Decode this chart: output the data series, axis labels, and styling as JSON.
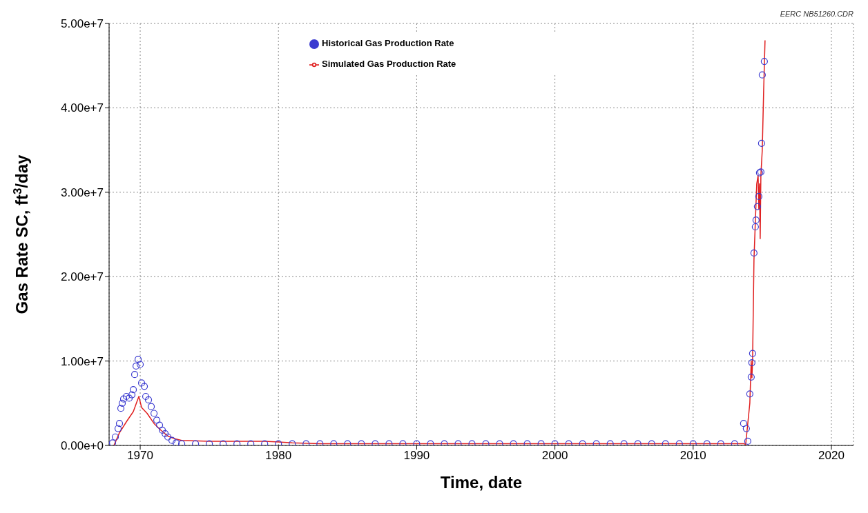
{
  "chart_data": {
    "type": "line",
    "xlabel": "Time, date",
    "ylabel": "Gas Rate SC, ft$^{3}$/day",
    "annotations": [
      "EERC NB51260.CDR"
    ],
    "xlim": [
      1967.75,
      2021.6
    ],
    "xticks": [
      1970,
      1980,
      1990,
      2000,
      2010,
      2020
    ],
    "ylim": [
      0,
      50000000
    ],
    "yticks": [
      {
        "value": 0,
        "label": "0.00e+0"
      },
      {
        "value": 10000000,
        "label": "1.00e+7"
      },
      {
        "value": 20000000,
        "label": "2.00e+7"
      },
      {
        "value": 30000000,
        "label": "3.00e+7"
      },
      {
        "value": 40000000,
        "label": "4.00e+7"
      },
      {
        "value": 50000000,
        "label": "5.00e+7"
      }
    ],
    "grid": true,
    "legend": "top",
    "series": [
      {
        "name": "Historical Gas Production Rate",
        "type": "scatter",
        "marker": "circle",
        "color": "#3b3bd0",
        "x": [
          1968.0,
          1968.2,
          1968.4,
          1968.5,
          1968.6,
          1968.7,
          1968.8,
          1969.0,
          1969.2,
          1969.4,
          1969.5,
          1969.6,
          1969.7,
          1969.85,
          1970.0,
          1970.1,
          1970.3,
          1970.4,
          1970.6,
          1970.8,
          1971.0,
          1971.2,
          1971.4,
          1971.6,
          1971.8,
          1972.0,
          1972.3,
          1972.6,
          1973,
          1974,
          1975,
          1976,
          1977,
          1978,
          1979,
          1980,
          1981,
          1982,
          1983,
          1984,
          1985,
          1986,
          1987,
          1988,
          1989,
          1990,
          1991,
          1992,
          1993,
          1994,
          1995,
          1996,
          1997,
          1998,
          1999,
          2000,
          2001,
          2002,
          2003,
          2004,
          2005,
          2006,
          2007,
          2008,
          2009,
          2010,
          2011,
          2012,
          2013,
          2013.65,
          2013.85,
          2013.95,
          2014.1,
          2014.2,
          2014.25,
          2014.3,
          2014.4,
          2014.5,
          2014.55,
          2014.65,
          2014.75,
          2014.8,
          2014.9,
          2014.95,
          2015.0,
          2015.15
        ],
        "values": [
          300000,
          1000000,
          2000000,
          2600000,
          4400000,
          5000000,
          5500000,
          5800000,
          5600000,
          6000000,
          6600000,
          8400000,
          9400000,
          10200000,
          9600000,
          7400000,
          7000000,
          5800000,
          5400000,
          4600000,
          3800000,
          3000000,
          2400000,
          1800000,
          1400000,
          1000000,
          600000,
          300000,
          200000,
          200000,
          200000,
          200000,
          200000,
          200000,
          200000,
          200000,
          200000,
          200000,
          200000,
          200000,
          200000,
          200000,
          200000,
          200000,
          200000,
          200000,
          200000,
          200000,
          200000,
          200000,
          200000,
          200000,
          200000,
          200000,
          200000,
          200000,
          200000,
          200000,
          200000,
          200000,
          200000,
          200000,
          200000,
          200000,
          200000,
          200000,
          200000,
          200000,
          200000,
          2600000,
          2000000,
          500000,
          6100000,
          8100000,
          9800000,
          10900000,
          22800000,
          25900000,
          26700000,
          28300000,
          29500000,
          32300000,
          32400000,
          35800000,
          43900000,
          45500000
        ]
      },
      {
        "name": "Simulated Gas Production Rate",
        "type": "line",
        "marker": "none",
        "line_style": "solid",
        "color": "#e02020",
        "x": [
          1968.1,
          1968.5,
          1969.0,
          1969.5,
          1969.9,
          1970.1,
          1970.5,
          1971.0,
          1971.5,
          1972.0,
          1972.5,
          1973,
          1975,
          1977,
          1979,
          1980,
          1981,
          1983,
          2013.7,
          2013.8,
          2014.1,
          2014.2,
          2014.25,
          2014.3,
          2014.4,
          2014.6,
          2014.7,
          2014.75,
          2014.8,
          2014.85,
          2014.9,
          2015.0,
          2015.1,
          2015.2
        ],
        "values": [
          0,
          1500000,
          2800000,
          4000000,
          5800000,
          4500000,
          3800000,
          2600000,
          1800000,
          1100000,
          800000,
          600000,
          500000,
          500000,
          500000,
          400000,
          300000,
          200000,
          200000,
          100000,
          5000000,
          10000000,
          8000000,
          10000000,
          22000000,
          31000000,
          32000000,
          28000000,
          31000000,
          24500000,
          32000000,
          35000000,
          42000000,
          48000000
        ]
      }
    ]
  }
}
